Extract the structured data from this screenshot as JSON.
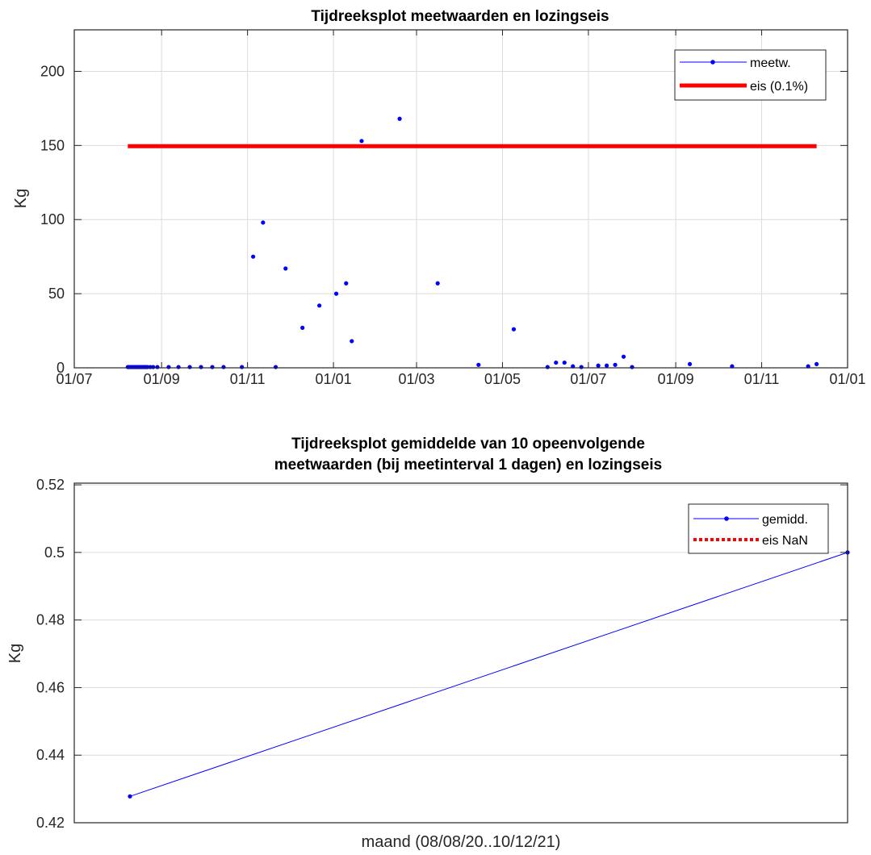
{
  "chart_data": [
    {
      "type": "scatter",
      "title": "Tijdreeksplot meetwaarden en lozingseis",
      "xlabel": "",
      "ylabel": "Kg",
      "x_ticks": [
        "2020-07-01",
        "2020-09-01",
        "2020-11-01",
        "2021-01-01",
        "2021-03-01",
        "2021-05-01",
        "2021-07-01",
        "2021-09-01",
        "2021-11-01",
        "2022-01-01"
      ],
      "x_tick_labels": [
        "01/07",
        "01/09",
        "01/11",
        "01/01",
        "01/03",
        "01/05",
        "01/07",
        "01/09",
        "01/11",
        "01/01"
      ],
      "xlim": [
        "2020-07-01",
        "2022-01-01"
      ],
      "y_ticks": [
        0,
        50,
        100,
        150,
        200
      ],
      "y_tick_labels": [
        "0",
        "50",
        "100",
        "150",
        "200"
      ],
      "ylim": [
        0,
        228
      ],
      "grid": true,
      "legend_position": "top-right",
      "colors": {
        "meetw": "#0000ff",
        "eis": "#ff0000"
      },
      "series": [
        {
          "name": "meetw.",
          "style": "markers",
          "points": [
            {
              "x": "2020-08-08",
              "y": 0.5
            },
            {
              "x": "2020-08-09",
              "y": 0.5
            },
            {
              "x": "2020-08-10",
              "y": 0.5
            },
            {
              "x": "2020-08-11",
              "y": 0.5
            },
            {
              "x": "2020-08-12",
              "y": 0.5
            },
            {
              "x": "2020-08-13",
              "y": 0.5
            },
            {
              "x": "2020-08-14",
              "y": 0.5
            },
            {
              "x": "2020-08-15",
              "y": 0.5
            },
            {
              "x": "2020-08-16",
              "y": 0.5
            },
            {
              "x": "2020-08-17",
              "y": 0.5
            },
            {
              "x": "2020-08-18",
              "y": 0.5
            },
            {
              "x": "2020-08-19",
              "y": 0.5
            },
            {
              "x": "2020-08-20",
              "y": 0.5
            },
            {
              "x": "2020-08-21",
              "y": 0.5
            },
            {
              "x": "2020-08-22",
              "y": 0.5
            },
            {
              "x": "2020-08-24",
              "y": 0.5
            },
            {
              "x": "2020-08-26",
              "y": 0.5
            },
            {
              "x": "2020-08-29",
              "y": 0.5
            },
            {
              "x": "2020-09-06",
              "y": 0.5
            },
            {
              "x": "2020-09-13",
              "y": 0.5
            },
            {
              "x": "2020-09-21",
              "y": 0.5
            },
            {
              "x": "2020-09-29",
              "y": 0.5
            },
            {
              "x": "2020-10-07",
              "y": 0.5
            },
            {
              "x": "2020-10-15",
              "y": 0.5
            },
            {
              "x": "2020-10-28",
              "y": 0.5
            },
            {
              "x": "2020-11-05",
              "y": 75
            },
            {
              "x": "2020-11-12",
              "y": 98
            },
            {
              "x": "2020-11-21",
              "y": 0.5
            },
            {
              "x": "2020-11-28",
              "y": 67
            },
            {
              "x": "2020-12-10",
              "y": 27
            },
            {
              "x": "2020-12-22",
              "y": 42
            },
            {
              "x": "2021-01-03",
              "y": 50
            },
            {
              "x": "2021-01-10",
              "y": 57
            },
            {
              "x": "2021-01-14",
              "y": 18
            },
            {
              "x": "2021-01-21",
              "y": 153
            },
            {
              "x": "2021-02-17",
              "y": 168
            },
            {
              "x": "2021-03-16",
              "y": 57
            },
            {
              "x": "2021-04-14",
              "y": 2
            },
            {
              "x": "2021-05-09",
              "y": 26
            },
            {
              "x": "2021-06-02",
              "y": 0.5
            },
            {
              "x": "2021-06-08",
              "y": 3.5
            },
            {
              "x": "2021-06-14",
              "y": 3.5
            },
            {
              "x": "2021-06-20",
              "y": 1
            },
            {
              "x": "2021-06-26",
              "y": 0.5
            },
            {
              "x": "2021-07-08",
              "y": 1.5
            },
            {
              "x": "2021-07-14",
              "y": 1.5
            },
            {
              "x": "2021-07-20",
              "y": 2
            },
            {
              "x": "2021-07-26",
              "y": 7.5
            },
            {
              "x": "2021-08-01",
              "y": 0.5
            },
            {
              "x": "2021-09-11",
              "y": 2.5
            },
            {
              "x": "2021-10-11",
              "y": 1
            },
            {
              "x": "2021-12-04",
              "y": 1
            },
            {
              "x": "2021-12-10",
              "y": 2.5
            }
          ]
        },
        {
          "name": "eis (0.1%)",
          "style": "thick-line",
          "points": [
            {
              "x": "2020-08-08",
              "y": 149.5
            },
            {
              "x": "2021-12-10",
              "y": 149.5
            }
          ]
        }
      ]
    },
    {
      "type": "line",
      "title": [
        "Tijdreeksplot gemiddelde van 10 opeenvolgende",
        "meetwaarden (bij meetinterval 1 dagen) en lozingseis"
      ],
      "xlabel": "maand (08/08/20..10/12/21)",
      "ylabel": "Kg",
      "y_ticks": [
        0.42,
        0.44,
        0.46,
        0.48,
        0.5,
        0.52
      ],
      "y_tick_labels": [
        "0.42",
        "0.44",
        "0.46",
        "0.48",
        "0.5",
        "0.52"
      ],
      "ylim": [
        0.42,
        0.5205
      ],
      "x_relative_range": [
        0,
        1
      ],
      "grid": "horizontal",
      "legend_position": "top-right",
      "colors": {
        "gemidd": "#0000ff",
        "eis": "#ff0000"
      },
      "series": [
        {
          "name": "gemidd.",
          "style": "line-markers",
          "x_rel": [
            0.072,
            1.0
          ],
          "values": [
            0.4278,
            0.5
          ]
        },
        {
          "name": "eis NaN",
          "style": "dotted",
          "x_rel": [],
          "values": []
        }
      ]
    }
  ]
}
